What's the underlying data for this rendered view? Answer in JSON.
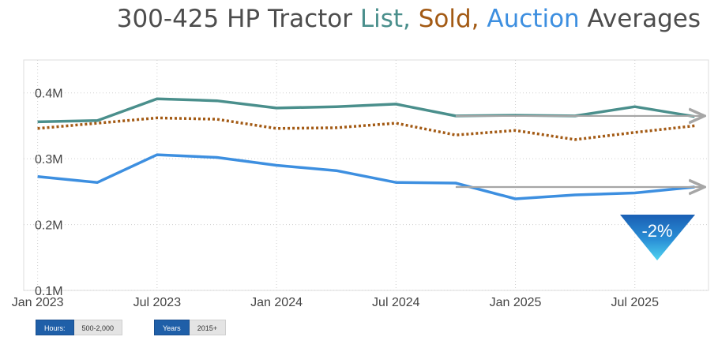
{
  "title_parts": {
    "prefix": "300-425 HP Tractor ",
    "list": "List,",
    "sold": " Sold,",
    "auction": " Auction",
    "suffix": " Averages"
  },
  "colors": {
    "list": "#4a8f8c",
    "sold": "#a35a14",
    "auction": "#3d8fe0",
    "arrow": "#a6a6a6",
    "badge": "#2a8fd6"
  },
  "badge_text": "-2%",
  "filters": [
    {
      "label": "Hours:",
      "value": "500-2,000"
    },
    {
      "label": "Years",
      "value": "2015+"
    }
  ],
  "chart_data": {
    "type": "line",
    "title": "300-425 HP Tractor List, Sold, Auction Averages",
    "x_months": [
      "2023-01",
      "2023-04",
      "2023-07",
      "2023-10",
      "2024-01",
      "2024-04",
      "2024-07",
      "2024-10",
      "2025-01",
      "2025-04",
      "2025-07",
      "2025-09"
    ],
    "x_ticks": [
      {
        "label": "Jan 2023",
        "month": 0
      },
      {
        "label": "Jul 2023",
        "month": 6
      },
      {
        "label": "Jan 2024",
        "month": 12
      },
      {
        "label": "Jul 2024",
        "month": 18
      },
      {
        "label": "Jan 2025",
        "month": 24
      },
      {
        "label": "Jul 2025",
        "month": 30
      }
    ],
    "x_range_months": [
      -0.7,
      33.7
    ],
    "y_ticks": [
      {
        "label": "0.1M",
        "value": 0.1
      },
      {
        "label": "0.2M",
        "value": 0.2
      },
      {
        "label": "0.3M",
        "value": 0.3
      },
      {
        "label": "0.4M",
        "value": 0.4
      }
    ],
    "ylim": [
      0.1,
      0.45
    ],
    "series": [
      {
        "name": "List",
        "style": "solid",
        "month": [
          0,
          3,
          6,
          9,
          12,
          15,
          18,
          21,
          24,
          27,
          30,
          33
        ],
        "values": [
          0.356,
          0.358,
          0.391,
          0.388,
          0.377,
          0.379,
          0.383,
          0.365,
          0.366,
          0.365,
          0.379,
          0.364
        ]
      },
      {
        "name": "Sold",
        "style": "dotted",
        "month": [
          0,
          3,
          6,
          9,
          12,
          15,
          18,
          21,
          24,
          27,
          30,
          33
        ],
        "values": [
          0.346,
          0.354,
          0.362,
          0.36,
          0.346,
          0.347,
          0.354,
          0.336,
          0.343,
          0.329,
          0.34,
          0.35
        ]
      },
      {
        "name": "Auction",
        "style": "solid",
        "month": [
          0,
          3,
          6,
          9,
          12,
          15,
          18,
          21,
          24,
          27,
          30,
          33
        ],
        "values": [
          0.273,
          0.264,
          0.306,
          0.302,
          0.29,
          0.282,
          0.264,
          0.263,
          0.239,
          0.245,
          0.248,
          0.257
        ]
      }
    ],
    "trend_arrows": [
      {
        "series": "List",
        "from_month": 21,
        "to_month": 33.5,
        "value": 0.365
      },
      {
        "series": "Auction",
        "from_month": 21,
        "to_month": 33.5,
        "value": 0.257
      }
    ],
    "grid": true
  }
}
